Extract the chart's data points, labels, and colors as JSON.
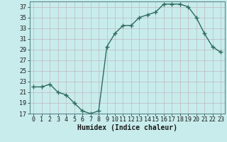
{
  "xlabel": "Humidex (Indice chaleur)",
  "x": [
    0,
    1,
    2,
    3,
    4,
    5,
    6,
    7,
    8,
    9,
    10,
    11,
    12,
    13,
    14,
    15,
    16,
    17,
    18,
    19,
    20,
    21,
    22,
    23
  ],
  "y": [
    22,
    22,
    22.5,
    21,
    20.5,
    19,
    17.5,
    17,
    17.5,
    29.5,
    32,
    33.5,
    33.5,
    35,
    35.5,
    36,
    37.5,
    37.5,
    37.5,
    37,
    35,
    32,
    29.5,
    28.5
  ],
  "ylim": [
    17,
    38
  ],
  "yticks": [
    17,
    19,
    21,
    23,
    25,
    27,
    29,
    31,
    33,
    35,
    37
  ],
  "line_color": "#2d6b5e",
  "marker": "+",
  "marker_size": 4,
  "bg_color": "#c8ecec",
  "grid_color": "#c0b8c0",
  "tick_fontsize": 6,
  "label_fontsize": 7,
  "linewidth": 1.0,
  "marker_linewidth": 1.0
}
